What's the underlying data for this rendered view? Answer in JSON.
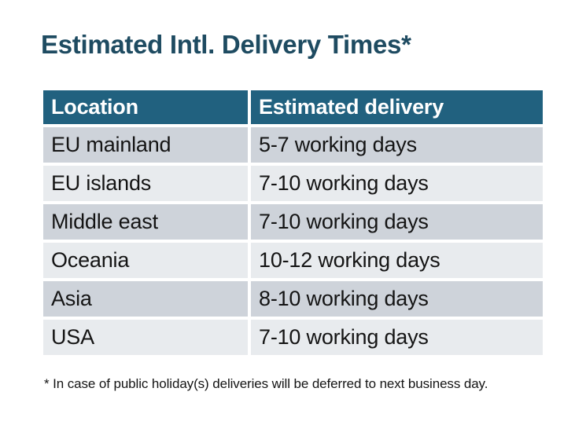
{
  "title": "Estimated Intl. Delivery Times*",
  "table": {
    "columns": [
      "Location",
      "Estimated delivery"
    ],
    "rows": [
      {
        "location": "EU mainland",
        "delivery": "5-7 working days"
      },
      {
        "location": "EU islands",
        "delivery": "7-10 working days"
      },
      {
        "location": "Middle east",
        "delivery": "7-10 working days"
      },
      {
        "location": "Oceania",
        "delivery": "10-12 working days"
      },
      {
        "location": "Asia",
        "delivery": "8-10 working days"
      },
      {
        "location": "USA",
        "delivery": "7-10 working days"
      }
    ]
  },
  "footnote": "* In case of public holiday(s) deliveries will be deferred to next business day.",
  "colors": {
    "background": "#FFFFFF",
    "title_text": "#1E4B61",
    "header_bg": "#21617F",
    "header_text": "#FFFFFF",
    "row_dark": "#CED3DA",
    "row_light": "#E8EBEE",
    "body_text": "#141414"
  }
}
